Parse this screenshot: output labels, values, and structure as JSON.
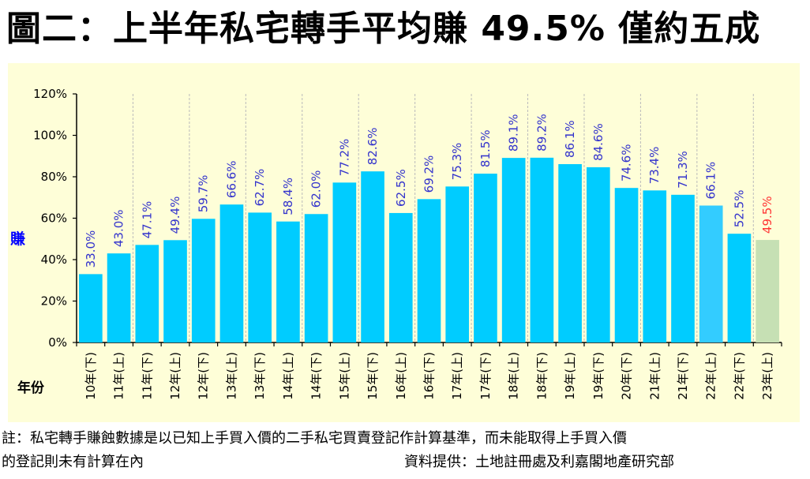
{
  "title": "圖二：上半年私宅轉手平均賺 49.5% 僅約五成",
  "chart_data": {
    "type": "bar",
    "title": "圖二：上半年私宅轉手平均賺 49.5% 僅約五成",
    "ylabel": "賺",
    "xlabel": "年份",
    "ylim": [
      0,
      120
    ],
    "yticks": [
      "0%",
      "20%",
      "40%",
      "60%",
      "80%",
      "100%",
      "120%"
    ],
    "categories": [
      "10年(下)",
      "11年(上)",
      "11年(下)",
      "12年(上)",
      "12年(下)",
      "13年(上)",
      "13年(下)",
      "14年(上)",
      "14年(下)",
      "15年(上)",
      "15年(下)",
      "16年(上)",
      "16年(下)",
      "17年(上)",
      "17年(下)",
      "18年(上)",
      "18年(下)",
      "19年(上)",
      "19年(下)",
      "20年(下)",
      "21年(上)",
      "21年(下)",
      "22年(上)",
      "22年(下)",
      "23年(上)"
    ],
    "values": [
      33.0,
      43.0,
      47.1,
      49.4,
      59.7,
      66.6,
      62.7,
      58.4,
      62.0,
      77.2,
      82.6,
      62.5,
      69.2,
      75.3,
      81.5,
      89.1,
      89.2,
      86.1,
      84.6,
      74.6,
      73.4,
      71.3,
      66.1,
      52.5,
      49.5
    ],
    "labels": [
      "33.0%",
      "43.0%",
      "47.1%",
      "49.4%",
      "59.7%",
      "66.6%",
      "62.7%",
      "58.4%",
      "62.0%",
      "77.2%",
      "82.6%",
      "62.5%",
      "69.2%",
      "75.3%",
      "81.5%",
      "89.1%",
      "89.2%",
      "86.1%",
      "84.6%",
      "74.6%",
      "73.4%",
      "71.3%",
      "66.1%",
      "52.5%",
      "49.5%"
    ],
    "colors": {
      "bar": "#00ccff",
      "bar_prev": "#33ccff",
      "bar_latest": "#c6e0b4",
      "label": "#3333cc",
      "label_latest": "#ff3333",
      "ylabel": "#0000ff",
      "background": "#fefed8",
      "grid": "#bbbbbb"
    }
  },
  "notes": {
    "line1": "註：私宅轉手賺蝕數據是以已知上手買入價的二手私宅買賣登記作計算基準，而未能取得上手買入價",
    "line2": "的登記則未有計算在內",
    "source": "資料提供：土地註冊處及利嘉閣地產研究部"
  }
}
